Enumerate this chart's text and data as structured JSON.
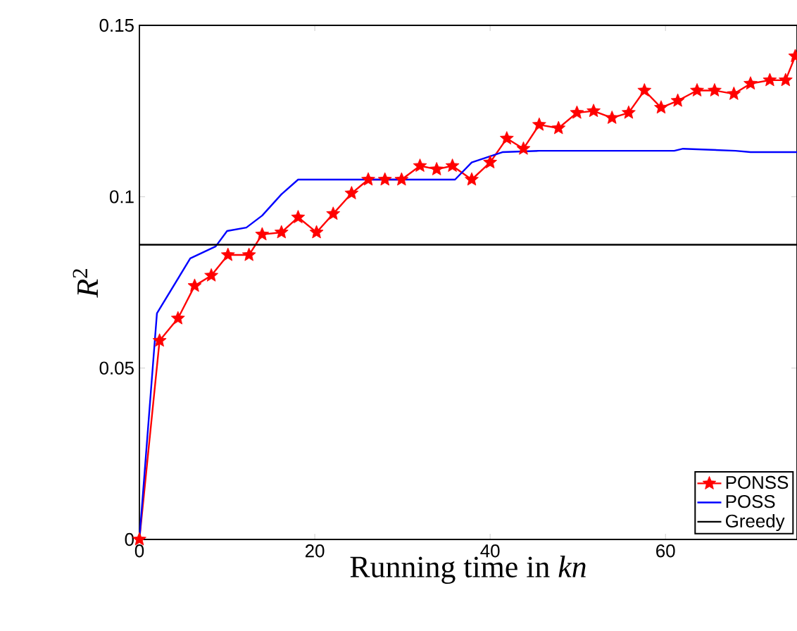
{
  "chart_data": {
    "type": "line",
    "xlabel": "Running time in *kn*",
    "ylabel": "*R*$^{2}$",
    "xlim": [
      0,
      75
    ],
    "ylim": [
      0,
      0.15
    ],
    "xticks": [
      0,
      20,
      40,
      60
    ],
    "yticks": [
      0,
      0.05,
      0.1,
      0.15
    ],
    "grid": false,
    "legend": "bottom right",
    "series": [
      {
        "name": "PONSS",
        "color": "#ff0000",
        "marker": "star",
        "line_style": "solid",
        "x": [
          0,
          2.3,
          4.4,
          6.3,
          8.2,
          10.1,
          12.5,
          14,
          16.2,
          18.1,
          20.2,
          22.1,
          24.2,
          26.1,
          28,
          29.9,
          32,
          33.9,
          35.7,
          37.9,
          40,
          41.9,
          43.8,
          45.6,
          47.8,
          49.9,
          51.8,
          53.9,
          55.8,
          57.6,
          59.5,
          61.4,
          63.6,
          65.6,
          67.8,
          69.7,
          71.9,
          73.7,
          74.8
        ],
        "values": [
          0,
          0.058,
          0.0645,
          0.074,
          0.077,
          0.083,
          0.083,
          0.089,
          0.0896,
          0.094,
          0.0896,
          0.095,
          0.101,
          0.105,
          0.105,
          0.105,
          0.109,
          0.108,
          0.109,
          0.105,
          0.11,
          0.117,
          0.114,
          0.121,
          0.12,
          0.1245,
          0.125,
          0.123,
          0.1245,
          0.131,
          0.126,
          0.128,
          0.131,
          0.131,
          0.13,
          0.133,
          0.134,
          0.134,
          0.141
        ]
      },
      {
        "name": "POSS",
        "color": "#0000ff",
        "marker": "none",
        "line_style": "solid",
        "x": [
          0,
          2,
          5.8,
          8.7,
          10,
          12.2,
          14,
          16.2,
          18.1,
          36,
          37.9,
          41.4,
          45.6,
          61,
          62,
          68,
          69.7,
          75
        ],
        "values": [
          0,
          0.066,
          0.082,
          0.0855,
          0.09,
          0.091,
          0.0945,
          0.1007,
          0.105,
          0.105,
          0.11,
          0.113,
          0.1134,
          0.1134,
          0.114,
          0.1134,
          0.113,
          0.113
        ]
      },
      {
        "name": "Greedy",
        "color": "#000000",
        "marker": "none",
        "line_style": "solid",
        "x": [
          0,
          75
        ],
        "values": [
          0.086,
          0.086
        ]
      }
    ]
  }
}
